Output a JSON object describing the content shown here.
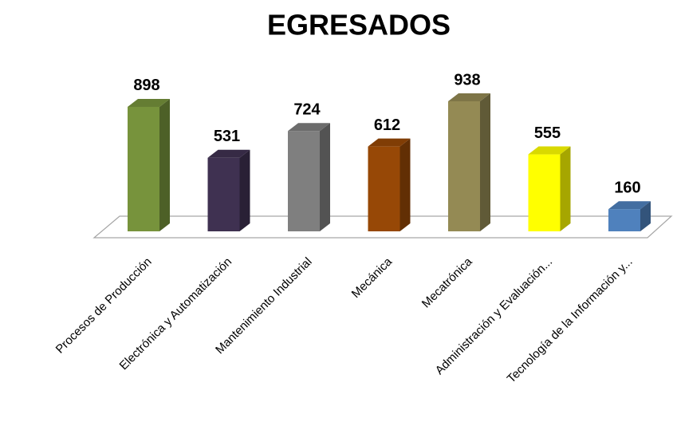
{
  "chart_data": {
    "type": "bar3d",
    "title": "EGRESADOS",
    "categories": [
      "Procesos de Producción",
      "Electrónica y Automatización",
      "Mantenimiento Industrial",
      "Mecánica",
      "Mecatrónica",
      "Administración y Evaluación...",
      "Tecnología de la Información y..."
    ],
    "values": [
      898,
      531,
      724,
      612,
      938,
      555,
      160
    ],
    "colors": [
      "#77933c",
      "#3f3151",
      "#7f7f7f",
      "#974806",
      "#948a54",
      "#ffff00",
      "#4f81bd"
    ]
  }
}
